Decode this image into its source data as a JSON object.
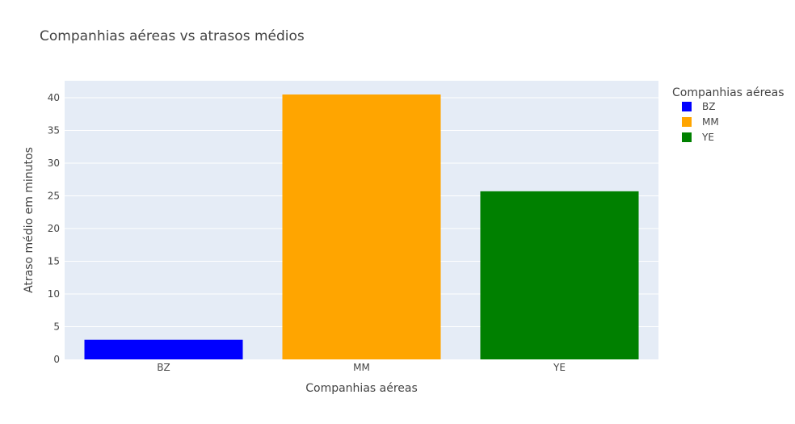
{
  "chart_data": {
    "type": "bar",
    "title": "Companhias aéreas vs atrasos médios",
    "xlabel": "Companhias aéreas",
    "ylabel": "Atraso médio em minutos",
    "categories": [
      "BZ",
      "MM",
      "YE"
    ],
    "values": [
      3.0,
      40.5,
      25.7
    ],
    "colors": [
      "#0000ff",
      "#ffa500",
      "#008000"
    ],
    "ylim": [
      0,
      42.6
    ],
    "yticks": [
      0,
      5,
      10,
      15,
      20,
      25,
      30,
      35,
      40
    ],
    "grid": true,
    "plot_background": "#e5ecf6",
    "legend": {
      "title": "Companhias aéreas",
      "placement": "right",
      "entries": [
        "BZ",
        "MM",
        "YE"
      ]
    }
  }
}
